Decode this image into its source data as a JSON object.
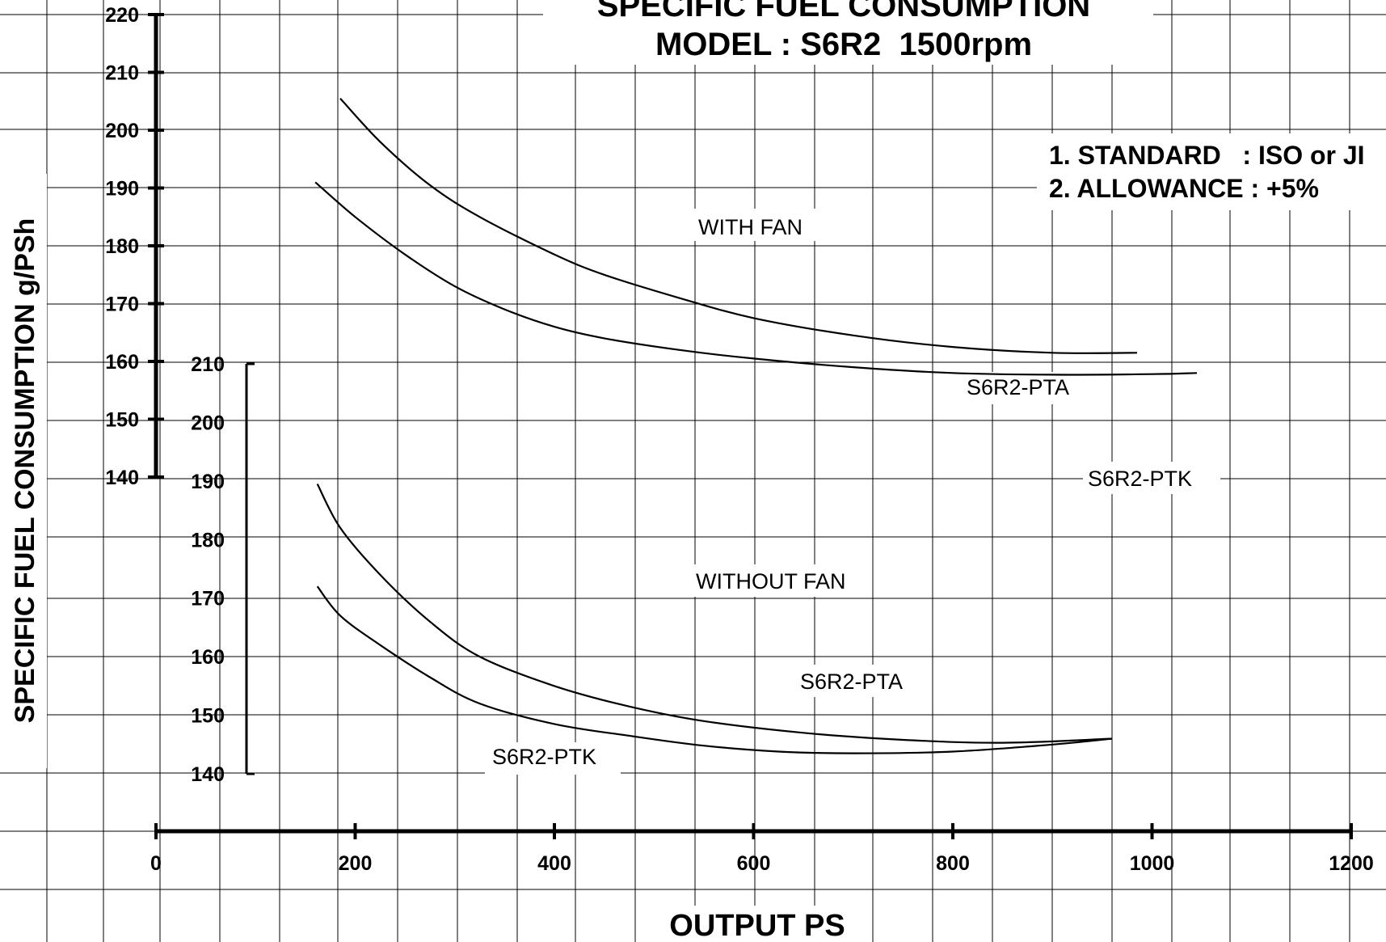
{
  "chart_data": {
    "type": "line",
    "title": "SPECIFIC FUEL CONSUMPTION",
    "subtitle": "MODEL : S6R2  1500rpm",
    "xlabel": "OUTPUT PS",
    "ylabel": "SPECIFIC FUEL CONSUMPTION g/PSh",
    "xlim": [
      0,
      1200
    ],
    "x_ticks": [
      "0",
      "200",
      "400",
      "600",
      "800",
      "1000",
      "1200"
    ],
    "grid": true,
    "notes": [
      "1. STANDARD   : ISO or JI",
      "2. ALLOWANCE : +5%"
    ],
    "panels": [
      {
        "name": "WITH FAN",
        "ylim": [
          140,
          220
        ],
        "y_ticks": [
          "220",
          "210",
          "200",
          "190",
          "180",
          "170",
          "160",
          "150",
          "140"
        ],
        "series": [
          {
            "name": "S6R2-PTA",
            "x": [
              185,
              225,
              275,
              325,
              400,
              450,
              525,
              600,
              700,
              800,
              900,
              985
            ],
            "y": [
              205.5,
              198,
              190.5,
              185,
              178.5,
              175,
              171,
              167.5,
              164.5,
              162.5,
              161.5,
              161.5
            ]
          },
          {
            "name": "S6R2-PTK",
            "x": [
              160,
              200,
              250,
              300,
              350,
              400,
              450,
              525,
              600,
              700,
              800,
              900,
              1000,
              1045
            ],
            "y": [
              191,
              185,
              178.5,
              173,
              169,
              166,
              164,
              162,
              160.5,
              159,
              158,
              157.7,
              157.8,
              158
            ]
          }
        ]
      },
      {
        "name": "WITHOUT FAN",
        "ylim": [
          140,
          210
        ],
        "y_ticks": [
          "210",
          "200",
          "190",
          "180",
          "170",
          "160",
          "150",
          "140"
        ],
        "series": [
          {
            "name": "S6R2-PTA",
            "x": [
              162,
              185,
              225,
              275,
              325,
              400,
              475,
              550,
              650,
              750,
              850,
              960
            ],
            "y": [
              189.5,
              182,
              174,
              166,
              160,
              155,
              151.5,
              149,
              147,
              145.8,
              145.3,
              146
            ]
          },
          {
            "name": "S6R2-PTK",
            "x": [
              162,
              185,
              225,
              275,
              325,
              400,
              475,
              550,
              625,
              700,
              800,
              900,
              960
            ],
            "y": [
              172,
              167,
              162,
              156.5,
              152,
              148.5,
              146.5,
              144.8,
              143.8,
              143.5,
              143.8,
              145,
              146
            ]
          }
        ]
      }
    ],
    "annotations": [
      "WITH FAN",
      "S6R2-PTA",
      "S6R2-PTK",
      "WITHOUT FAN",
      "S6R2-PTA",
      "S6R2-PTK"
    ]
  }
}
